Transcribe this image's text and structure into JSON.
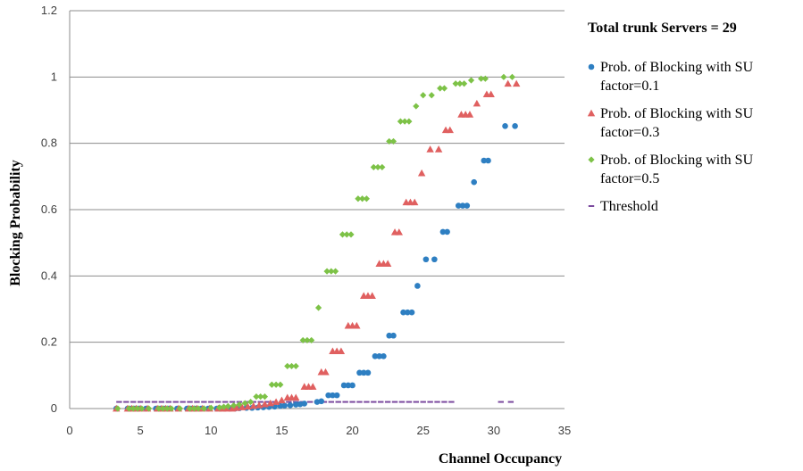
{
  "chart_data": {
    "type": "scatter",
    "xlabel": "Channel Occupancy",
    "ylabel": "Blocking Probability",
    "xlim": [
      0,
      35
    ],
    "ylim": [
      0,
      1.2
    ],
    "xticks": [
      0,
      5,
      10,
      15,
      20,
      25,
      30,
      35
    ],
    "yticks": [
      0,
      0.2,
      0.4,
      0.6,
      0.8,
      1,
      1.2
    ],
    "ytick_labels": [
      "0",
      "0.2",
      "0.4",
      "0.6",
      "0.8",
      "1",
      "1.2"
    ],
    "grid": "horizontal",
    "legend_title": "Total trunk Servers = 29",
    "legend_position": "right",
    "series": [
      {
        "name": "Prob. of Blocking with SU factor=0.1",
        "marker": "circle",
        "color": "#2e7fc2",
        "points": [
          [
            3.3,
            0
          ],
          [
            4.1,
            0
          ],
          [
            4.3,
            0
          ],
          [
            4.6,
            0
          ],
          [
            4.9,
            0
          ],
          [
            5.4,
            0
          ],
          [
            6.1,
            0
          ],
          [
            6.4,
            0
          ],
          [
            6.7,
            0
          ],
          [
            7.0,
            0
          ],
          [
            7.6,
            0
          ],
          [
            8.3,
            0
          ],
          [
            8.6,
            0
          ],
          [
            8.9,
            0
          ],
          [
            9.3,
            0
          ],
          [
            9.8,
            0
          ],
          [
            10.4,
            0
          ],
          [
            10.7,
            0
          ],
          [
            11.0,
            0
          ],
          [
            11.4,
            0
          ],
          [
            11.7,
            0
          ],
          [
            12.0,
            0.001
          ],
          [
            12.5,
            0.002
          ],
          [
            12.9,
            0.002
          ],
          [
            13.3,
            0.003
          ],
          [
            13.7,
            0.004
          ],
          [
            14.1,
            0.005
          ],
          [
            14.5,
            0.006
          ],
          [
            14.9,
            0.008
          ],
          [
            15.2,
            0.009
          ],
          [
            15.6,
            0.01
          ],
          [
            16.0,
            0.012
          ],
          [
            16.3,
            0.013
          ],
          [
            16.6,
            0.015
          ],
          [
            17.5,
            0.02
          ],
          [
            17.8,
            0.022
          ],
          [
            18.3,
            0.04
          ],
          [
            18.6,
            0.04
          ],
          [
            18.9,
            0.04
          ],
          [
            19.4,
            0.07
          ],
          [
            19.7,
            0.07
          ],
          [
            20.0,
            0.07
          ],
          [
            20.5,
            0.108
          ],
          [
            20.8,
            0.108
          ],
          [
            21.1,
            0.108
          ],
          [
            21.6,
            0.158
          ],
          [
            21.9,
            0.158
          ],
          [
            22.2,
            0.158
          ],
          [
            22.6,
            0.22
          ],
          [
            22.9,
            0.22
          ],
          [
            23.6,
            0.29
          ],
          [
            23.9,
            0.29
          ],
          [
            24.2,
            0.29
          ],
          [
            24.6,
            0.37
          ],
          [
            25.2,
            0.45
          ],
          [
            25.8,
            0.45
          ],
          [
            26.4,
            0.533
          ],
          [
            26.7,
            0.533
          ],
          [
            27.5,
            0.612
          ],
          [
            27.8,
            0.612
          ],
          [
            28.1,
            0.612
          ],
          [
            28.6,
            0.683
          ],
          [
            29.3,
            0.748
          ],
          [
            29.6,
            0.748
          ],
          [
            30.8,
            0.852
          ],
          [
            31.5,
            0.852
          ]
        ]
      },
      {
        "name": "Prob. of Blocking with SU factor=0.3",
        "marker": "triangle",
        "color": "#e06060",
        "points": [
          [
            3.3,
            0
          ],
          [
            4.1,
            0
          ],
          [
            4.4,
            0
          ],
          [
            4.7,
            0
          ],
          [
            5.0,
            0
          ],
          [
            5.5,
            0
          ],
          [
            6.2,
            0
          ],
          [
            6.5,
            0
          ],
          [
            6.8,
            0
          ],
          [
            7.1,
            0
          ],
          [
            7.7,
            0
          ],
          [
            8.4,
            0
          ],
          [
            8.7,
            0
          ],
          [
            9.0,
            0
          ],
          [
            9.4,
            0
          ],
          [
            9.9,
            0
          ],
          [
            10.5,
            0
          ],
          [
            10.8,
            0
          ],
          [
            11.1,
            0
          ],
          [
            11.5,
            0
          ],
          [
            11.8,
            0.002
          ],
          [
            12.2,
            0.004
          ],
          [
            12.6,
            0.006
          ],
          [
            13.0,
            0.008
          ],
          [
            13.4,
            0.01
          ],
          [
            13.8,
            0.013
          ],
          [
            14.2,
            0.016
          ],
          [
            14.6,
            0.02
          ],
          [
            15.0,
            0.025
          ],
          [
            15.4,
            0.033
          ],
          [
            15.7,
            0.033
          ],
          [
            16.0,
            0.033
          ],
          [
            16.6,
            0.066
          ],
          [
            16.9,
            0.066
          ],
          [
            17.2,
            0.066
          ],
          [
            17.8,
            0.11
          ],
          [
            18.1,
            0.11
          ],
          [
            18.6,
            0.173
          ],
          [
            18.9,
            0.173
          ],
          [
            19.2,
            0.173
          ],
          [
            19.7,
            0.25
          ],
          [
            20.0,
            0.25
          ],
          [
            20.3,
            0.25
          ],
          [
            20.8,
            0.34
          ],
          [
            21.1,
            0.34
          ],
          [
            21.4,
            0.34
          ],
          [
            21.9,
            0.437
          ],
          [
            22.2,
            0.437
          ],
          [
            22.5,
            0.437
          ],
          [
            23.0,
            0.532
          ],
          [
            23.3,
            0.532
          ],
          [
            23.8,
            0.622
          ],
          [
            24.1,
            0.622
          ],
          [
            24.4,
            0.622
          ],
          [
            24.9,
            0.71
          ],
          [
            25.5,
            0.782
          ],
          [
            26.1,
            0.782
          ],
          [
            26.6,
            0.84
          ],
          [
            26.9,
            0.84
          ],
          [
            27.7,
            0.887
          ],
          [
            28.0,
            0.887
          ],
          [
            28.3,
            0.887
          ],
          [
            28.8,
            0.92
          ],
          [
            29.5,
            0.948
          ],
          [
            29.8,
            0.948
          ],
          [
            31.0,
            0.98
          ],
          [
            31.6,
            0.98
          ]
        ]
      },
      {
        "name": "Prob. of Blocking with SU factor=0.5",
        "marker": "diamond",
        "color": "#7dc247",
        "points": [
          [
            3.4,
            0
          ],
          [
            4.2,
            0
          ],
          [
            4.5,
            0
          ],
          [
            4.8,
            0
          ],
          [
            5.1,
            0
          ],
          [
            5.6,
            0
          ],
          [
            6.3,
            0
          ],
          [
            6.6,
            0
          ],
          [
            6.9,
            0
          ],
          [
            7.2,
            0
          ],
          [
            7.8,
            0
          ],
          [
            8.5,
            0
          ],
          [
            8.8,
            0
          ],
          [
            9.1,
            0
          ],
          [
            9.5,
            0
          ],
          [
            10.0,
            0.002
          ],
          [
            10.6,
            0.003
          ],
          [
            10.9,
            0.005
          ],
          [
            11.2,
            0.007
          ],
          [
            11.6,
            0.009
          ],
          [
            12.0,
            0.012
          ],
          [
            12.4,
            0.016
          ],
          [
            12.8,
            0.02
          ],
          [
            13.2,
            0.036
          ],
          [
            13.5,
            0.036
          ],
          [
            13.8,
            0.036
          ],
          [
            14.3,
            0.072
          ],
          [
            14.6,
            0.072
          ],
          [
            14.9,
            0.072
          ],
          [
            15.4,
            0.128
          ],
          [
            15.7,
            0.128
          ],
          [
            16.0,
            0.128
          ],
          [
            16.5,
            0.206
          ],
          [
            16.8,
            0.206
          ],
          [
            17.1,
            0.206
          ],
          [
            17.6,
            0.304
          ],
          [
            18.2,
            0.414
          ],
          [
            18.5,
            0.414
          ],
          [
            18.8,
            0.414
          ],
          [
            19.3,
            0.525
          ],
          [
            19.6,
            0.525
          ],
          [
            19.9,
            0.525
          ],
          [
            20.4,
            0.633
          ],
          [
            20.7,
            0.633
          ],
          [
            21.0,
            0.633
          ],
          [
            21.5,
            0.728
          ],
          [
            21.8,
            0.728
          ],
          [
            22.1,
            0.728
          ],
          [
            22.6,
            0.806
          ],
          [
            22.9,
            0.806
          ],
          [
            23.4,
            0.866
          ],
          [
            23.7,
            0.866
          ],
          [
            24.0,
            0.866
          ],
          [
            24.5,
            0.912
          ],
          [
            25.0,
            0.945
          ],
          [
            25.6,
            0.945
          ],
          [
            26.2,
            0.966
          ],
          [
            26.5,
            0.966
          ],
          [
            27.3,
            0.98
          ],
          [
            27.6,
            0.98
          ],
          [
            27.9,
            0.98
          ],
          [
            28.4,
            0.99
          ],
          [
            29.1,
            0.995
          ],
          [
            29.4,
            0.995
          ],
          [
            30.7,
            1.0
          ],
          [
            31.3,
            1.0
          ]
        ]
      },
      {
        "name": "Threshold",
        "marker": "dash",
        "color": "#7b4a9e",
        "points": [
          [
            3.5,
            0.02
          ],
          [
            4.0,
            0.02
          ],
          [
            4.5,
            0.02
          ],
          [
            5.0,
            0.02
          ],
          [
            5.5,
            0.02
          ],
          [
            6.0,
            0.02
          ],
          [
            6.5,
            0.02
          ],
          [
            7.0,
            0.02
          ],
          [
            7.5,
            0.02
          ],
          [
            8.0,
            0.02
          ],
          [
            8.5,
            0.02
          ],
          [
            9.0,
            0.02
          ],
          [
            9.5,
            0.02
          ],
          [
            10.0,
            0.02
          ],
          [
            10.5,
            0.02
          ],
          [
            11.0,
            0.02
          ],
          [
            11.5,
            0.02
          ],
          [
            12.0,
            0.02
          ],
          [
            12.5,
            0.02
          ],
          [
            13.0,
            0.02
          ],
          [
            13.5,
            0.02
          ],
          [
            14.0,
            0.02
          ],
          [
            14.5,
            0.02
          ],
          [
            15.0,
            0.02
          ],
          [
            15.5,
            0.02
          ],
          [
            16.0,
            0.02
          ],
          [
            16.5,
            0.02
          ],
          [
            17.0,
            0.02
          ],
          [
            17.5,
            0.02
          ],
          [
            18.0,
            0.02
          ],
          [
            18.5,
            0.02
          ],
          [
            19.0,
            0.02
          ],
          [
            19.5,
            0.02
          ],
          [
            20.0,
            0.02
          ],
          [
            20.5,
            0.02
          ],
          [
            21.0,
            0.02
          ],
          [
            21.5,
            0.02
          ],
          [
            22.0,
            0.02
          ],
          [
            22.5,
            0.02
          ],
          [
            23.0,
            0.02
          ],
          [
            23.5,
            0.02
          ],
          [
            24.0,
            0.02
          ],
          [
            24.5,
            0.02
          ],
          [
            25.0,
            0.02
          ],
          [
            25.5,
            0.02
          ],
          [
            26.0,
            0.02
          ],
          [
            26.5,
            0.02
          ],
          [
            27.0,
            0.02
          ],
          [
            30.5,
            0.02
          ],
          [
            31.2,
            0.02
          ]
        ]
      }
    ]
  }
}
